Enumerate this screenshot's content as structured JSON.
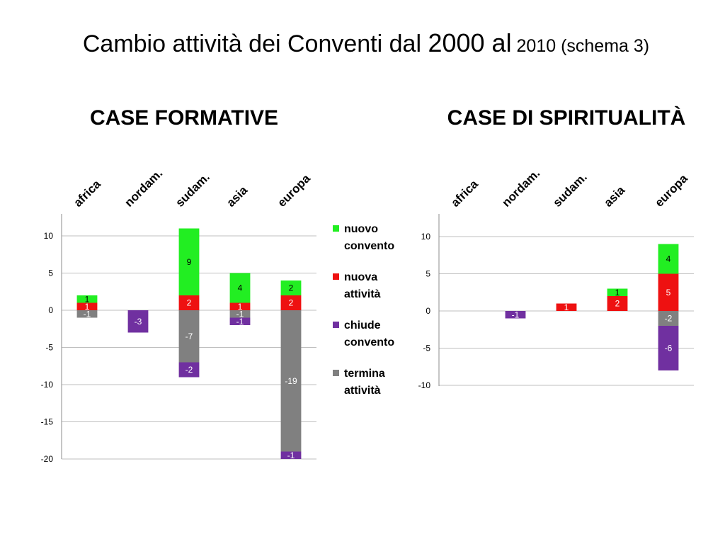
{
  "title": {
    "part1": "Cambio attività dei Conventi dal ",
    "part2": "2000 al",
    "part3": " 2010 ",
    "part4": "(schema 3)"
  },
  "colors": {
    "nuovo_convento": "#22ee22",
    "nuova_attivita": "#ee1111",
    "chiude_convento": "#7030a0",
    "termina_attivita": "#808080"
  },
  "legend": [
    {
      "key": "nuovo_convento",
      "label": "nuovo convento"
    },
    {
      "key": "nuova_attivita",
      "label": "nuova attività"
    },
    {
      "key": "chiude_convento",
      "label": "chiude convento"
    },
    {
      "key": "termina_attivita",
      "label": "termina attività"
    }
  ],
  "chart_data": [
    {
      "type": "bar",
      "stacked": true,
      "title": "CASE FORMATIVE",
      "categories": [
        "africa",
        "nordam.",
        "sudam.",
        "asia",
        "europa"
      ],
      "ylim": [
        -20,
        13
      ],
      "yticks": [
        10,
        5,
        0,
        -5,
        -10,
        -15,
        -20
      ],
      "grid": true,
      "legend_position": "right",
      "series": [
        {
          "key": "nuova_attivita",
          "name": "nuova attività",
          "values": [
            1,
            0,
            2,
            1,
            2
          ]
        },
        {
          "key": "nuovo_convento",
          "name": "nuovo convento",
          "values": [
            1,
            0,
            9,
            4,
            2
          ]
        },
        {
          "key": "termina_attivita",
          "name": "termina attività",
          "values": [
            -1,
            0,
            -7,
            -1,
            -19
          ]
        },
        {
          "key": "chiude_convento",
          "name": "chiude convento",
          "values": [
            0,
            -3,
            -2,
            -1,
            -1
          ]
        }
      ]
    },
    {
      "type": "bar",
      "stacked": true,
      "title": "CASE DI SPIRITUALITÀ",
      "categories": [
        "africa",
        "nordam.",
        "sudam.",
        "asia",
        "europa"
      ],
      "ylim": [
        -10,
        13
      ],
      "yticks": [
        10,
        5,
        0,
        -5,
        -10
      ],
      "grid": true,
      "series": [
        {
          "key": "nuova_attivita",
          "name": "nuova attività",
          "values": [
            0,
            0,
            1,
            2,
            5
          ]
        },
        {
          "key": "nuovo_convento",
          "name": "nuovo convento",
          "values": [
            0,
            0,
            0,
            1,
            4
          ]
        },
        {
          "key": "termina_attivita",
          "name": "termina attività",
          "values": [
            0,
            0,
            0,
            0,
            -2
          ]
        },
        {
          "key": "chiude_convento",
          "name": "chiude convento",
          "values": [
            0,
            -1,
            0,
            0,
            -6
          ]
        }
      ]
    }
  ]
}
